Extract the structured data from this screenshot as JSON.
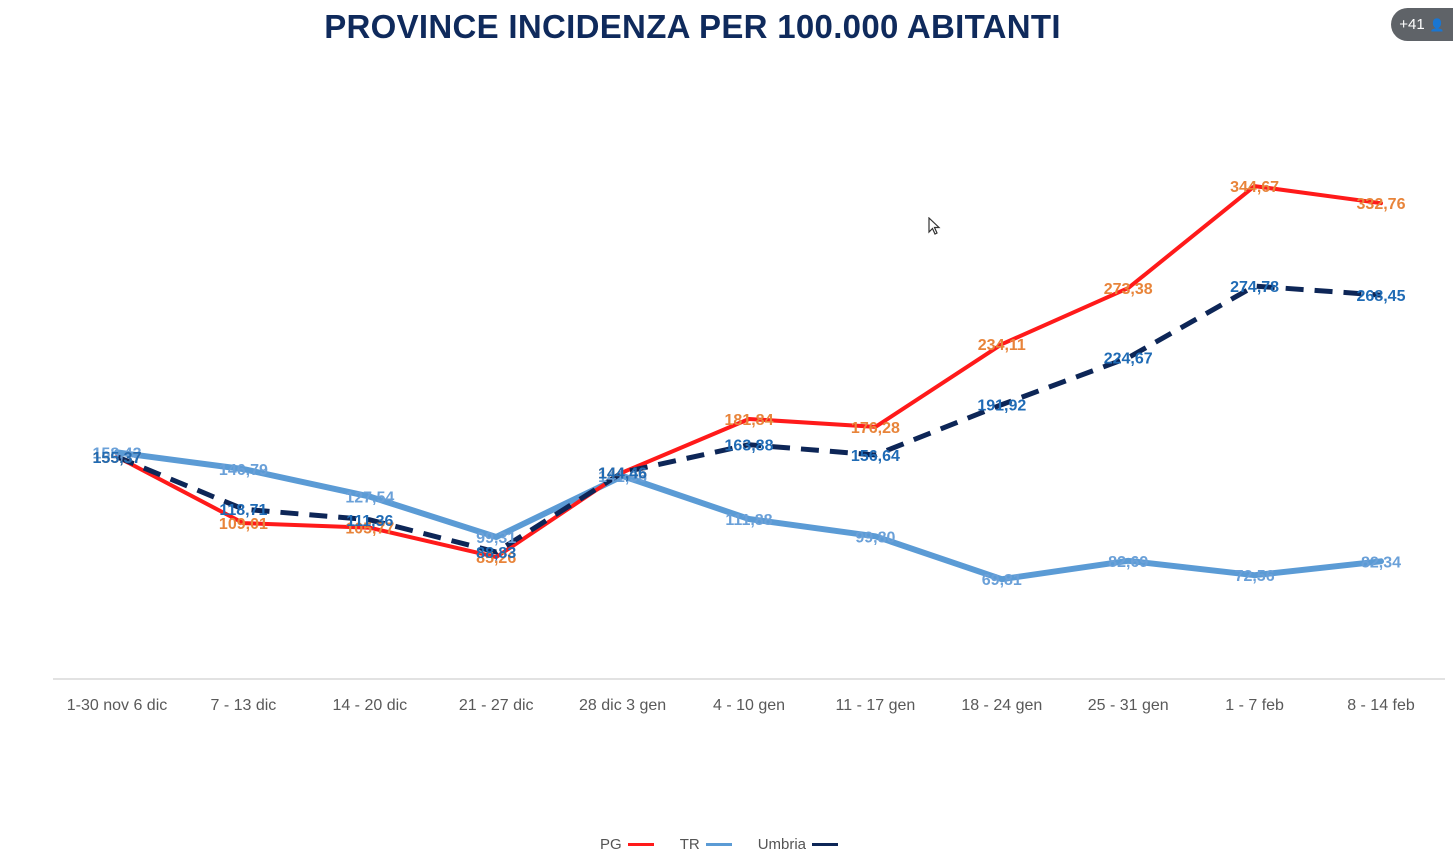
{
  "slide": {
    "title": "PROVINCE INCIDENZA PER 100.000 ABITANTI"
  },
  "participants": {
    "count_label": "+41",
    "icon": "person-icon"
  },
  "chart_data": {
    "type": "line",
    "title": "PROVINCE INCIDENZA PER 100.000 ABITANTI",
    "categories": [
      "1-30 nov 6 dic",
      "7 - 13 dic",
      "14 - 20 dic",
      "21 - 27 dic",
      "28 dic 3 gen",
      "4 - 10 gen",
      "11 - 17 gen",
      "18 - 24 gen",
      "25 - 31 gen",
      "1 - 7 feb",
      "8 - 14 feb"
    ],
    "series": [
      {
        "name": "PG",
        "color": "#ff1a1a",
        "label_color": "#e8843a",
        "style": "solid",
        "values": [
          155.37,
          109.01,
          105.77,
          85.26,
          144.46,
          181.84,
          176.28,
          234.11,
          273.38,
          344.67,
          332.76
        ],
        "labels": [
          "155,37",
          "109,01",
          "105,77",
          "85,26",
          "144,46",
          "181,84",
          "176,28",
          "234,11",
          "273,38",
          "344,67",
          "332,76"
        ]
      },
      {
        "name": "TR",
        "color": "#5b9bd5",
        "label_color": "#6aa0d8",
        "style": "solid",
        "values": [
          158.43,
          146.79,
          127.54,
          99.31,
          141.96,
          111.88,
          99.8,
          69.81,
          82.69,
          72.56,
          82.34
        ],
        "labels": [
          "158,43",
          "146,79",
          "127,54",
          "99,31",
          "141,96",
          "111,88",
          "99,80",
          "69,81",
          "82,69",
          "72,56",
          "82,34"
        ]
      },
      {
        "name": "Umbria",
        "color": "#0d2657",
        "label_color": "#1f6bb5",
        "style": "dashed",
        "values": [
          155.37,
          118.71,
          111.36,
          88.83,
          144.46,
          163.88,
          156.64,
          191.92,
          224.67,
          274.78,
          268.45
        ],
        "labels": [
          "155,37",
          "118,71",
          "111,36",
          "88,83",
          "144,46",
          "163,88",
          "156,64",
          "191,92",
          "224,67",
          "274,78",
          "268,45"
        ]
      }
    ],
    "legend": {
      "position": "bottom",
      "entries": [
        "PG",
        "TR",
        "Umbria"
      ]
    },
    "ylim": [
      0,
      380
    ],
    "grid": false
  }
}
